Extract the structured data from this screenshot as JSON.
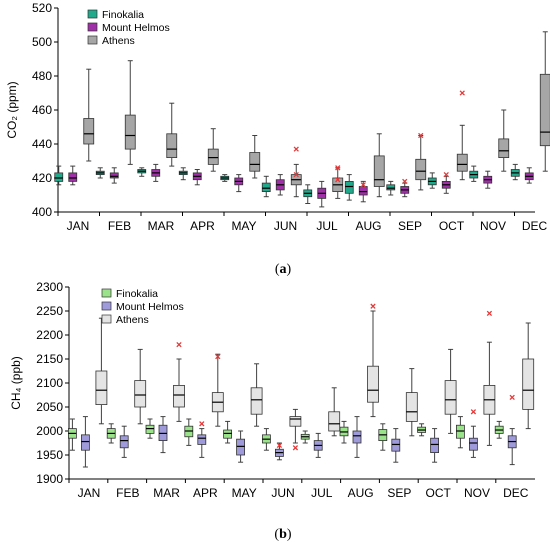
{
  "chart_data": [
    {
      "type": "boxplot",
      "panel": "a",
      "caption_letter": "a",
      "ylabel": "CO₂ (ppm)",
      "ylim": [
        400,
        520
      ],
      "yticks": [
        400,
        420,
        440,
        460,
        480,
        500,
        520
      ],
      "categories": [
        "JAN",
        "FEB",
        "MAR",
        "APR",
        "MAY",
        "JUN",
        "JUL",
        "AUG",
        "SEP",
        "OCT",
        "NOV",
        "DEC"
      ],
      "legend_position": "top-left",
      "series": [
        {
          "name": "Finokalia",
          "color": "#20a98a",
          "boxes": [
            {
              "min": 416,
              "q1": 418,
              "median": 420,
              "q3": 423,
              "max": 427,
              "outliers": []
            },
            {
              "min": 420,
              "q1": 422,
              "median": 423,
              "q3": 424,
              "max": 426,
              "outliers": []
            },
            {
              "min": 421,
              "q1": 423,
              "median": 424,
              "q3": 425,
              "max": 426,
              "outliers": []
            },
            {
              "min": 419,
              "q1": 422,
              "median": 423,
              "q3": 424,
              "max": 426,
              "outliers": []
            },
            {
              "min": 418,
              "q1": 419,
              "median": 420,
              "q3": 421,
              "max": 422,
              "outliers": []
            },
            {
              "min": 409,
              "q1": 412,
              "median": 414,
              "q3": 417,
              "max": 421,
              "outliers": []
            },
            {
              "min": 405,
              "q1": 409,
              "median": 411,
              "q3": 413,
              "max": 416,
              "outliers": []
            },
            {
              "min": 407,
              "q1": 411,
              "median": 415,
              "q3": 418,
              "max": 422,
              "outliers": []
            },
            {
              "min": 410,
              "q1": 413,
              "median": 414,
              "q3": 416,
              "max": 418,
              "outliers": []
            },
            {
              "min": 414,
              "q1": 416,
              "median": 418,
              "q3": 420,
              "max": 423,
              "outliers": []
            },
            {
              "min": 418,
              "q1": 420,
              "median": 422,
              "q3": 424,
              "max": 427,
              "outliers": []
            },
            {
              "min": 419,
              "q1": 421,
              "median": 423,
              "q3": 425,
              "max": 428,
              "outliers": []
            }
          ]
        },
        {
          "name": "Mount Helmos",
          "color": "#a030a8",
          "boxes": [
            {
              "min": 416,
              "q1": 418,
              "median": 420,
              "q3": 423,
              "max": 427,
              "outliers": []
            },
            {
              "min": 417,
              "q1": 420,
              "median": 421,
              "q3": 423,
              "max": 426,
              "outliers": []
            },
            {
              "min": 418,
              "q1": 421,
              "median": 423,
              "q3": 425,
              "max": 428,
              "outliers": []
            },
            {
              "min": 416,
              "q1": 419,
              "median": 421,
              "q3": 423,
              "max": 425,
              "outliers": []
            },
            {
              "min": 412,
              "q1": 416,
              "median": 418,
              "q3": 420,
              "max": 422,
              "outliers": []
            },
            {
              "min": 410,
              "q1": 413,
              "median": 416,
              "q3": 419,
              "max": 422,
              "outliers": []
            },
            {
              "min": 403,
              "q1": 408,
              "median": 411,
              "q3": 414,
              "max": 418,
              "outliers": []
            },
            {
              "min": 406,
              "q1": 410,
              "median": 412,
              "q3": 415,
              "max": 418,
              "outliers": [
                416
              ]
            },
            {
              "min": 409,
              "q1": 411,
              "median": 413,
              "q3": 415,
              "max": 417,
              "outliers": [
                418
              ]
            },
            {
              "min": 411,
              "q1": 414,
              "median": 416,
              "q3": 418,
              "max": 421,
              "outliers": [
                422
              ]
            },
            {
              "min": 414,
              "q1": 417,
              "median": 419,
              "q3": 421,
              "max": 424,
              "outliers": []
            },
            {
              "min": 417,
              "q1": 419,
              "median": 421,
              "q3": 423,
              "max": 426,
              "outliers": []
            }
          ]
        },
        {
          "name": "Athens",
          "color": "#a6a6a6",
          "boxes": [
            {
              "min": 430,
              "q1": 440,
              "median": 446,
              "q3": 455,
              "max": 484,
              "outliers": []
            },
            {
              "min": 428,
              "q1": 437,
              "median": 445,
              "q3": 457,
              "max": 489,
              "outliers": []
            },
            {
              "min": 427,
              "q1": 432,
              "median": 437,
              "q3": 446,
              "max": 464,
              "outliers": []
            },
            {
              "min": 424,
              "q1": 428,
              "median": 432,
              "q3": 437,
              "max": 449,
              "outliers": []
            },
            {
              "min": 420,
              "q1": 424,
              "median": 428,
              "q3": 435,
              "max": 445,
              "outliers": []
            },
            {
              "min": 409,
              "q1": 416,
              "median": 419,
              "q3": 422,
              "max": 428,
              "outliers": [
                422,
                437
              ]
            },
            {
              "min": 408,
              "q1": 412,
              "median": 416,
              "q3": 420,
              "max": 426,
              "outliers": [
                419,
                426
              ]
            },
            {
              "min": 409,
              "q1": 415,
              "median": 419,
              "q3": 433,
              "max": 446,
              "outliers": []
            },
            {
              "min": 413,
              "q1": 419,
              "median": 424,
              "q3": 431,
              "max": 445,
              "outliers": [
                445
              ]
            },
            {
              "min": 419,
              "q1": 424,
              "median": 428,
              "q3": 434,
              "max": 451,
              "outliers": [
                470
              ]
            },
            {
              "min": 424,
              "q1": 432,
              "median": 436,
              "q3": 443,
              "max": 460,
              "outliers": []
            },
            {
              "min": 424,
              "q1": 439,
              "median": 447,
              "q3": 481,
              "max": 506,
              "outliers": []
            }
          ]
        }
      ]
    },
    {
      "type": "boxplot",
      "panel": "b",
      "caption_letter": "b",
      "ylabel": "CH₄ (ppb)",
      "ylim": [
        1900,
        2300
      ],
      "yticks": [
        1900,
        1950,
        2000,
        2050,
        2100,
        2150,
        2200,
        2250,
        2300
      ],
      "categories": [
        "JAN",
        "FEB",
        "MAR",
        "APR",
        "MAY",
        "JUN",
        "JUL",
        "AUG",
        "SEP",
        "OCT",
        "NOV",
        "DEC"
      ],
      "legend_position": "top-left",
      "series": [
        {
          "name": "Finokalia",
          "color": "#9be38b",
          "boxes": [
            {
              "min": 1960,
              "q1": 1985,
              "median": 1995,
              "q3": 2005,
              "max": 2025,
              "outliers": []
            },
            {
              "min": 1975,
              "q1": 1985,
              "median": 1995,
              "q3": 2005,
              "max": 2015,
              "outliers": []
            },
            {
              "min": 1985,
              "q1": 1995,
              "median": 2005,
              "q3": 2012,
              "max": 2025,
              "outliers": []
            },
            {
              "min": 1970,
              "q1": 1988,
              "median": 2000,
              "q3": 2010,
              "max": 2025,
              "outliers": []
            },
            {
              "min": 1975,
              "q1": 1985,
              "median": 1995,
              "q3": 2002,
              "max": 2020,
              "outliers": []
            },
            {
              "min": 1960,
              "q1": 1975,
              "median": 1983,
              "q3": 1992,
              "max": 2005,
              "outliers": []
            },
            {
              "min": 1975,
              "q1": 1983,
              "median": 1988,
              "q3": 1993,
              "max": 2000,
              "outliers": []
            },
            {
              "min": 1975,
              "q1": 1990,
              "median": 1998,
              "q3": 2008,
              "max": 2020,
              "outliers": []
            },
            {
              "min": 1960,
              "q1": 1980,
              "median": 1992,
              "q3": 2003,
              "max": 2015,
              "outliers": []
            },
            {
              "min": 1990,
              "q1": 1997,
              "median": 2002,
              "q3": 2008,
              "max": 2015,
              "outliers": []
            },
            {
              "min": 1965,
              "q1": 1985,
              "median": 2000,
              "q3": 2012,
              "max": 2030,
              "outliers": []
            },
            {
              "min": 1985,
              "q1": 1995,
              "median": 2002,
              "q3": 2010,
              "max": 2020,
              "outliers": []
            }
          ]
        },
        {
          "name": "Mount Helmos",
          "color": "#9f9bdb",
          "boxes": [
            {
              "min": 1925,
              "q1": 1960,
              "median": 1978,
              "q3": 1992,
              "max": 2030,
              "outliers": []
            },
            {
              "min": 1945,
              "q1": 1965,
              "median": 1980,
              "q3": 1990,
              "max": 2010,
              "outliers": []
            },
            {
              "min": 1955,
              "q1": 1980,
              "median": 1995,
              "q3": 2012,
              "max": 2030,
              "outliers": []
            },
            {
              "min": 1945,
              "q1": 1972,
              "median": 1985,
              "q3": 1992,
              "max": 2005,
              "outliers": [
                2015
              ]
            },
            {
              "min": 1935,
              "q1": 1950,
              "median": 1968,
              "q3": 1983,
              "max": 2000,
              "outliers": []
            },
            {
              "min": 1940,
              "q1": 1947,
              "median": 1955,
              "q3": 1962,
              "max": 1975,
              "outliers": [
                1970
              ]
            },
            {
              "min": 1945,
              "q1": 1960,
              "median": 1970,
              "q3": 1980,
              "max": 1995,
              "outliers": []
            },
            {
              "min": 1945,
              "q1": 1975,
              "median": 1990,
              "q3": 2000,
              "max": 2030,
              "outliers": []
            },
            {
              "min": 1935,
              "q1": 1958,
              "median": 1972,
              "q3": 1983,
              "max": 2005,
              "outliers": []
            },
            {
              "min": 1935,
              "q1": 1955,
              "median": 1972,
              "q3": 1985,
              "max": 2005,
              "outliers": []
            },
            {
              "min": 1945,
              "q1": 1960,
              "median": 1975,
              "q3": 1985,
              "max": 2010,
              "outliers": [
                2040
              ]
            },
            {
              "min": 1930,
              "q1": 1965,
              "median": 1978,
              "q3": 1990,
              "max": 2005,
              "outliers": [
                2070
              ]
            }
          ]
        },
        {
          "name": "Athens",
          "color": "#e4e4e4",
          "boxes": [
            {
              "min": 2015,
              "q1": 2055,
              "median": 2085,
              "q3": 2125,
              "max": 2235,
              "outliers": []
            },
            {
              "min": 2015,
              "q1": 2050,
              "median": 2075,
              "q3": 2105,
              "max": 2170,
              "outliers": []
            },
            {
              "min": 2020,
              "q1": 2050,
              "median": 2075,
              "q3": 2095,
              "max": 2150,
              "outliers": [
                2180
              ]
            },
            {
              "min": 2010,
              "q1": 2040,
              "median": 2060,
              "q3": 2080,
              "max": 2160,
              "outliers": [
                2155
              ]
            },
            {
              "min": 2010,
              "q1": 2035,
              "median": 2065,
              "q3": 2090,
              "max": 2140,
              "outliers": []
            },
            {
              "min": 1975,
              "q1": 2010,
              "median": 2025,
              "q3": 2030,
              "max": 2045,
              "outliers": [
                1965
              ]
            },
            {
              "min": 1990,
              "q1": 2000,
              "median": 2015,
              "q3": 2040,
              "max": 2090,
              "outliers": []
            },
            {
              "min": 2030,
              "q1": 2060,
              "median": 2085,
              "q3": 2135,
              "max": 2250,
              "outliers": [
                2260
              ]
            },
            {
              "min": 1990,
              "q1": 2020,
              "median": 2040,
              "q3": 2080,
              "max": 2130,
              "outliers": []
            },
            {
              "min": 1995,
              "q1": 2035,
              "median": 2065,
              "q3": 2105,
              "max": 2170,
              "outliers": []
            },
            {
              "min": 1970,
              "q1": 2035,
              "median": 2065,
              "q3": 2095,
              "max": 2185,
              "outliers": [
                2245
              ]
            },
            {
              "min": 2005,
              "q1": 2045,
              "median": 2085,
              "q3": 2150,
              "max": 2225,
              "outliers": []
            }
          ]
        }
      ]
    }
  ]
}
